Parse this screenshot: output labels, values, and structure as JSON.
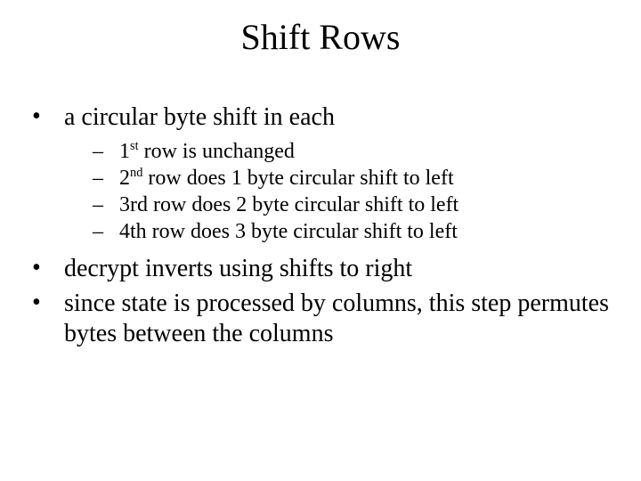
{
  "title": "Shift Rows",
  "bullets": {
    "b1": "a circular byte shift in each",
    "b2": "decrypt inverts using shifts to right",
    "b3": "since state is processed by columns, this step permutes bytes between the columns"
  },
  "subs": {
    "s1_pre": "1",
    "s1_sup": "st",
    "s1_post": " row is unchanged",
    "s2_pre": "2",
    "s2_sup": "nd",
    "s2_post": " row does 1 byte circular shift to left",
    "s3": "3rd row does 2 byte circular shift to left",
    "s4": "4th row does 3 byte circular shift to left"
  },
  "glyphs": {
    "bullet": "•",
    "dash": "–"
  }
}
